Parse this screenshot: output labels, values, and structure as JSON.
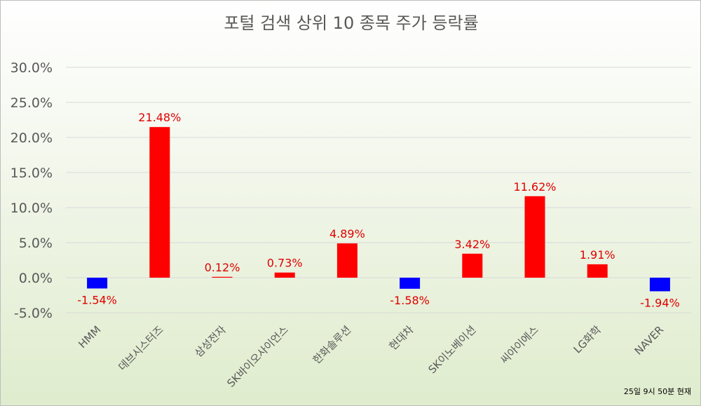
{
  "chart_data": {
    "type": "bar",
    "title": "포털 검색 상위 10 종목 주가 등락률",
    "categories": [
      "HMM",
      "데브시스터즈",
      "삼성전자",
      "SK바이오사이언스",
      "한화솔루션",
      "현대차",
      "SK이노베이션",
      "씨아이에스",
      "LG화학",
      "NAVER"
    ],
    "values": [
      -1.54,
      21.48,
      0.12,
      0.73,
      4.89,
      -1.58,
      3.42,
      11.62,
      1.91,
      -1.94
    ],
    "data_labels": [
      "-1.54%",
      "21.48%",
      "0.12%",
      "0.73%",
      "4.89%",
      "-1.58%",
      "3.42%",
      "11.62%",
      "1.91%",
      "-1.94%"
    ],
    "y_ticks": [
      -5,
      0,
      5,
      10,
      15,
      20,
      25,
      30
    ],
    "y_tick_labels": [
      "-5.0%",
      "0.0%",
      "5.0%",
      "10.0%",
      "15.0%",
      "20.0%",
      "25.0%",
      "30.0%"
    ],
    "ylim": [
      -5,
      30
    ],
    "grid": true,
    "xlabel": "",
    "ylabel": "",
    "positive_color": "#ff0000",
    "negative_color": "#0000ff",
    "label_color": "#e00000",
    "note": "25일 9시 50분 현재"
  }
}
